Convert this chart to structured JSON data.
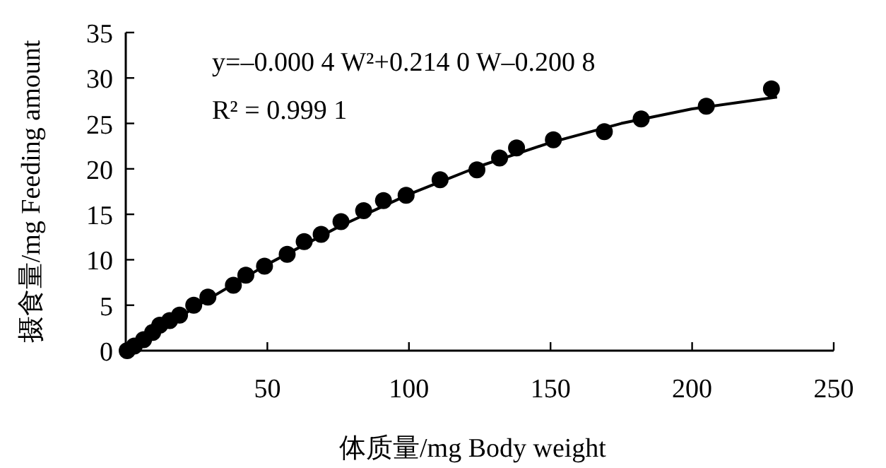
{
  "chart_data": {
    "type": "scatter",
    "xlabel": "体质量/mg Body weight",
    "ylabel": "摄食量/mg Feeding amount",
    "annotations": [
      "y=–0.000 4 W²+0.214 0 W–0.200 8",
      "R² = 0.999 1"
    ],
    "xlim": [
      0,
      250
    ],
    "xticks": [
      50,
      100,
      150,
      200,
      250
    ],
    "ylim": [
      0,
      35
    ],
    "yticks": [
      0,
      5,
      10,
      15,
      20,
      25,
      30,
      35
    ],
    "grid": false,
    "marker": "circle",
    "series": [
      {
        "color": "#000000",
        "x": [
          0.5,
          3,
          6.3,
          9.5,
          12,
          15.5,
          19,
          24,
          29,
          38,
          42.4,
          49,
          57,
          63,
          69,
          76,
          84,
          91,
          99,
          111,
          124,
          132,
          138,
          151,
          169,
          182,
          205,
          228
        ],
        "values": [
          0,
          0.5,
          1.2,
          2.0,
          2.8,
          3.3,
          3.9,
          5.0,
          5.9,
          7.2,
          8.3,
          9.3,
          10.6,
          12.0,
          12.8,
          14.2,
          15.4,
          16.5,
          17.1,
          18.8,
          19.9,
          21.2,
          22.3,
          23.2,
          24.1,
          25.5,
          26.9,
          28.8
        ]
      },
      {
        "type": "line",
        "color": "#000000",
        "marker": "none",
        "line_style": "solid",
        "x": [
          1,
          25,
          50,
          75,
          100,
          125,
          150,
          175,
          200,
          230
        ],
        "values": [
          0.0,
          4.9,
          9.5,
          13.6,
          17.2,
          20.3,
          22.9,
          25.0,
          26.6,
          27.9
        ]
      }
    ]
  }
}
